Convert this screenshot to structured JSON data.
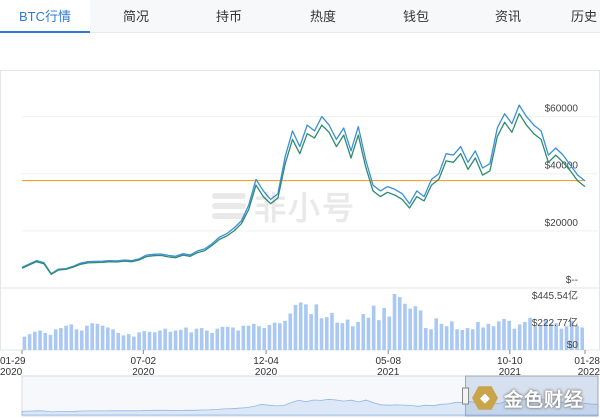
{
  "tabs": [
    {
      "label": "BTC行情",
      "active": true
    },
    {
      "label": "简况",
      "active": false
    },
    {
      "label": "持币",
      "active": false
    },
    {
      "label": "热度",
      "active": false
    },
    {
      "label": "钱包",
      "active": false
    },
    {
      "label": "资讯",
      "active": false
    },
    {
      "label": "历史",
      "active": false
    }
  ],
  "watermark": {
    "text": "非小号"
  },
  "brand": {
    "text": "金色财经",
    "icon": "gold-hexagon-icon"
  },
  "colors": {
    "price_line": "#3b8fd9",
    "price_line_2": "#2e8b6f",
    "ref_line": "#f5a23b",
    "volume_bar": "#a9c8f2"
  },
  "chart_data": {
    "type": "line",
    "series": [
      {
        "values": [
          7200,
          8400,
          9600,
          8900,
          5000,
          6600,
          6800,
          7600,
          8700,
          9200,
          9300,
          9400,
          9600,
          9500,
          9800,
          9600,
          10200,
          11500,
          11800,
          11900,
          11400,
          11100,
          12000,
          11600,
          13000,
          13700,
          15500,
          17800,
          19000,
          21000,
          23500,
          29000,
          38000,
          34000,
          31000,
          33000,
          46000,
          55000,
          49500,
          57000,
          55000,
          60000,
          57000,
          52000,
          56000,
          48000,
          56500,
          45000,
          36000,
          34000,
          35500,
          34500,
          33000,
          29500,
          34000,
          32000,
          38000,
          40000,
          47000,
          46500,
          49500,
          44000,
          48000,
          42000,
          43500,
          56000,
          61000,
          57500,
          64000,
          60000,
          57000,
          55000,
          46500,
          49000,
          46500,
          43000,
          39500,
          37500
        ]
      },
      {
        "values": [
          6900,
          8100,
          9200,
          8500,
          4800,
          6300,
          6500,
          7300,
          8300,
          8800,
          8900,
          9000,
          9200,
          9100,
          9400,
          9200,
          9800,
          11000,
          11300,
          11400,
          10900,
          10600,
          11500,
          11100,
          12400,
          13100,
          14900,
          17000,
          18200,
          20000,
          22500,
          27500,
          36000,
          32000,
          29500,
          31500,
          43500,
          52000,
          47000,
          54000,
          52500,
          57000,
          54500,
          49500,
          53500,
          45500,
          53500,
          42500,
          34000,
          32000,
          33500,
          32500,
          31000,
          28000,
          32000,
          30500,
          36000,
          38000,
          44500,
          44000,
          47000,
          41500,
          45500,
          39500,
          41000,
          53000,
          58000,
          54500,
          61000,
          57000,
          54000,
          52000,
          44000,
          46500,
          44000,
          41000,
          37500,
          35500
        ]
      }
    ],
    "reference_line": 37600,
    "ylim": [
      0,
      70000
    ],
    "y_ticks": [
      {
        "value": 60000,
        "label": "$60000"
      },
      {
        "value": 40000,
        "label": "$40000"
      },
      {
        "value": 20000,
        "label": "$20000"
      },
      {
        "value": 0,
        "label": "$--"
      }
    ],
    "volume": {
      "values": [
        110,
        130,
        150,
        160,
        140,
        125,
        170,
        180,
        200,
        210,
        170,
        160,
        200,
        220,
        215,
        200,
        185,
        170,
        140,
        120,
        130,
        110,
        145,
        155,
        150,
        145,
        160,
        175,
        150,
        160,
        165,
        185,
        145,
        175,
        180,
        160,
        140,
        175,
        190,
        190,
        185,
        160,
        200,
        200,
        215,
        195,
        180,
        205,
        225,
        220,
        240,
        300,
        370,
        390,
        375,
        295,
        375,
        260,
        270,
        305,
        225,
        220,
        250,
        195,
        230,
        295,
        265,
        365,
        245,
        345,
        275,
        460,
        435,
        380,
        340,
        360,
        325,
        180,
        170,
        260,
        215,
        195,
        235,
        170,
        165,
        180,
        170,
        230,
        185,
        215,
        195,
        235,
        255,
        240,
        175,
        210,
        230,
        265,
        195,
        200,
        245,
        215,
        220,
        175,
        195,
        240,
        200,
        185
      ],
      "max_value": 460,
      "y_labels": [
        {
          "value": 445.54,
          "label": "$445.54亿"
        },
        {
          "value": 222.77,
          "label": "$222.77亿"
        },
        {
          "value": 0,
          "label": "$0"
        }
      ]
    },
    "x_ticks": [
      {
        "date": "01-29",
        "year": "2020",
        "pos": 0.0
      },
      {
        "date": "07-02",
        "year": "2020",
        "pos": 0.2155
      },
      {
        "date": "12-04",
        "year": "2020",
        "pos": 0.4335
      },
      {
        "date": "05-08",
        "year": "2021",
        "pos": 0.6505
      },
      {
        "date": "10-10",
        "year": "2021",
        "pos": 0.8665
      },
      {
        "date": "01-28",
        "year": "2022",
        "pos": 1.0
      }
    ],
    "navigator": {
      "selected_start": 0.77,
      "selected_end": 1.0
    }
  }
}
